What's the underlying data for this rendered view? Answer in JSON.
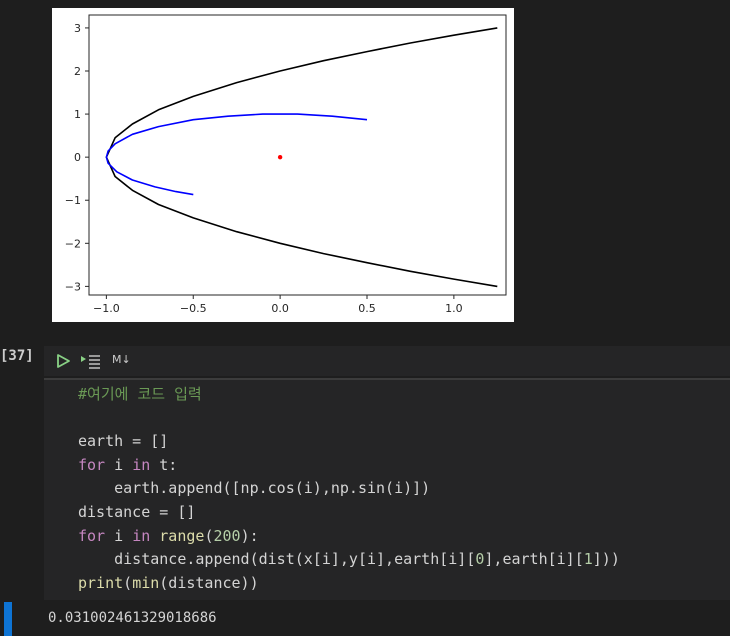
{
  "plot": {
    "x_ticks": [
      "−1.0",
      "−0.5",
      "0.0",
      "0.5",
      "1.0"
    ],
    "y_ticks": [
      "3",
      "2",
      "1",
      "0",
      "−1",
      "−2",
      "−3"
    ],
    "chart_data": {
      "type": "line",
      "xlim": [
        -1.1,
        1.3
      ],
      "ylim": [
        -3.2,
        3.3
      ],
      "series": [
        {
          "color": "#000000",
          "x": [
            1.25,
            1.0,
            0.75,
            0.5,
            0.25,
            0.0,
            -0.25,
            -0.5,
            -0.7,
            -0.85,
            -0.95,
            -1.0,
            -0.95,
            -0.85,
            -0.7,
            -0.5,
            -0.25,
            0.0,
            0.25,
            0.5,
            0.75,
            1.0,
            1.25
          ],
          "y": [
            3.0,
            2.83,
            2.65,
            2.45,
            2.24,
            2.0,
            1.73,
            1.41,
            1.1,
            0.77,
            0.45,
            0.0,
            -0.45,
            -0.77,
            -1.1,
            -1.41,
            -1.73,
            -2.0,
            -2.24,
            -2.45,
            -2.65,
            -2.83,
            -3.0
          ]
        },
        {
          "color": "#0000ff",
          "x": [
            0.5,
            0.3,
            0.1,
            0.0,
            -0.1,
            -0.3,
            -0.5,
            -0.7,
            -0.85,
            -0.95,
            -0.99,
            -1.0,
            -0.99,
            -0.94,
            -0.85,
            -0.72,
            -0.6,
            -0.5
          ],
          "y": [
            0.87,
            0.95,
            1.0,
            1.0,
            1.0,
            0.95,
            0.87,
            0.71,
            0.53,
            0.31,
            0.14,
            0.0,
            -0.14,
            -0.34,
            -0.53,
            -0.69,
            -0.8,
            -0.87
          ]
        },
        {
          "type": "scatter",
          "color": "#ff0000",
          "x": [
            0.0
          ],
          "y": [
            0.0
          ]
        }
      ]
    }
  },
  "cell": {
    "execution_count": "[37]",
    "language_label": "M↓",
    "code_lines": [
      [
        {
          "t": "#여기에 코드 입력",
          "c": "cm"
        }
      ],
      [],
      [
        {
          "t": "earth = []"
        }
      ],
      [
        {
          "t": "for",
          "c": "kw"
        },
        {
          "t": " i "
        },
        {
          "t": "in",
          "c": "kw"
        },
        {
          "t": " t:"
        }
      ],
      [
        {
          "t": "    earth.append([np.cos(i),np.sin(i)])"
        }
      ],
      [
        {
          "t": "distance = []"
        }
      ],
      [
        {
          "t": "for",
          "c": "kw"
        },
        {
          "t": " i "
        },
        {
          "t": "in",
          "c": "kw"
        },
        {
          "t": " "
        },
        {
          "t": "range",
          "c": "fn"
        },
        {
          "t": "("
        },
        {
          "t": "200",
          "c": "num"
        },
        {
          "t": "):"
        }
      ],
      [
        {
          "t": "    distance.append(dist(x[i],y[i],earth[i]["
        },
        {
          "t": "0",
          "c": "num"
        },
        {
          "t": "],earth[i]["
        },
        {
          "t": "1",
          "c": "num"
        },
        {
          "t": "]))"
        }
      ],
      [
        {
          "t": "print",
          "c": "fn"
        },
        {
          "t": "("
        },
        {
          "t": "min",
          "c": "fn"
        },
        {
          "t": "(distance))"
        }
      ]
    ],
    "output": "0.031002461329018686"
  }
}
